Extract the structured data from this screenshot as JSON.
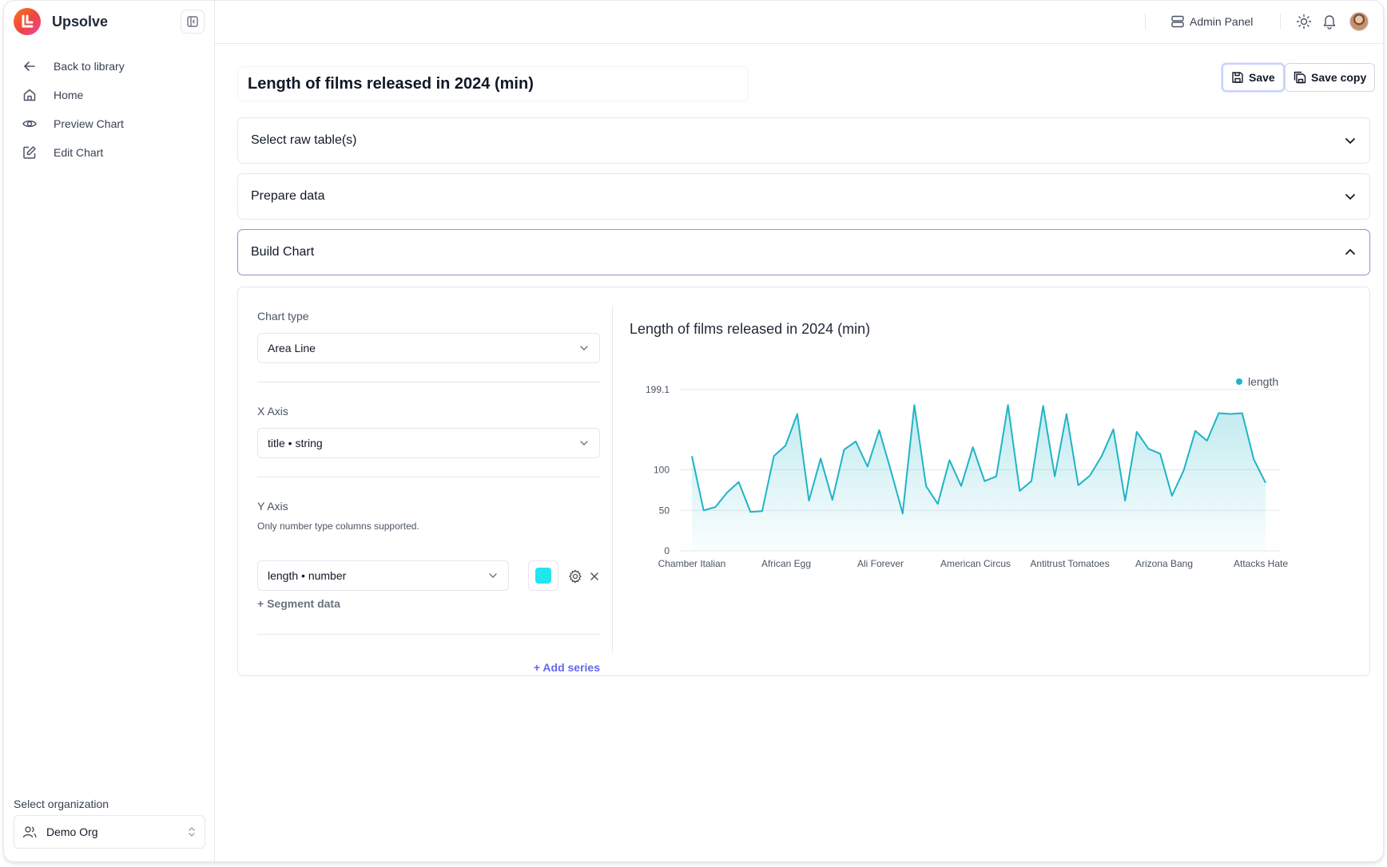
{
  "sidebar": {
    "brand": "Upsolve",
    "nav": [
      {
        "label": "Back to library",
        "icon": "arrow-left-icon"
      },
      {
        "label": "Home",
        "icon": "home-icon"
      },
      {
        "label": "Preview Chart",
        "icon": "eye-icon"
      },
      {
        "label": "Edit Chart",
        "icon": "edit-icon"
      }
    ],
    "org_label": "Select organization",
    "org_value": "Demo Org"
  },
  "topbar": {
    "admin_panel": "Admin Panel"
  },
  "editor": {
    "title": "Length of films released in 2024 (min)",
    "save_label": "Save",
    "save_copy_label": "Save copy",
    "sections": {
      "raw_tables": "Select raw table(s)",
      "prepare_data": "Prepare data",
      "build_chart": "Build Chart"
    },
    "config": {
      "chart_type_label": "Chart type",
      "chart_type_value": "Area Line",
      "x_axis_label": "X Axis",
      "x_axis_value": "title • string",
      "y_axis_label": "Y Axis",
      "y_axis_hint": "Only number type columns supported.",
      "y_axis_value": "length • number",
      "series_color": "#22e5f0",
      "segment_data": "+ Segment data",
      "add_series": "+ Add series"
    }
  },
  "chart_data": {
    "type": "area",
    "title": "Length of films released in 2024 (min)",
    "legend": [
      "length"
    ],
    "legend_position": "top-right",
    "series_color": "#1fb4c7",
    "ylim": [
      0,
      199.1
    ],
    "y_ticks": [
      0,
      50,
      100,
      199.1
    ],
    "x_tick_labels": [
      "Chamber Italian",
      "African Egg",
      "Ali Forever",
      "American Circus",
      "Antitrust Tomatoes",
      "Arizona Bang",
      "Attacks Hate"
    ],
    "grid": true,
    "series": [
      {
        "name": "length",
        "values": [
          117,
          50,
          54,
          72,
          85,
          48,
          49,
          117,
          130,
          169,
          62,
          114,
          63,
          125,
          135,
          104,
          149,
          99,
          46,
          180,
          80,
          58,
          112,
          80,
          128,
          86,
          92,
          180,
          74,
          86,
          179,
          92,
          169,
          81,
          93,
          117,
          150,
          62,
          147,
          126,
          120,
          68,
          99,
          148,
          136,
          170,
          169,
          170,
          113,
          84
        ]
      }
    ]
  }
}
